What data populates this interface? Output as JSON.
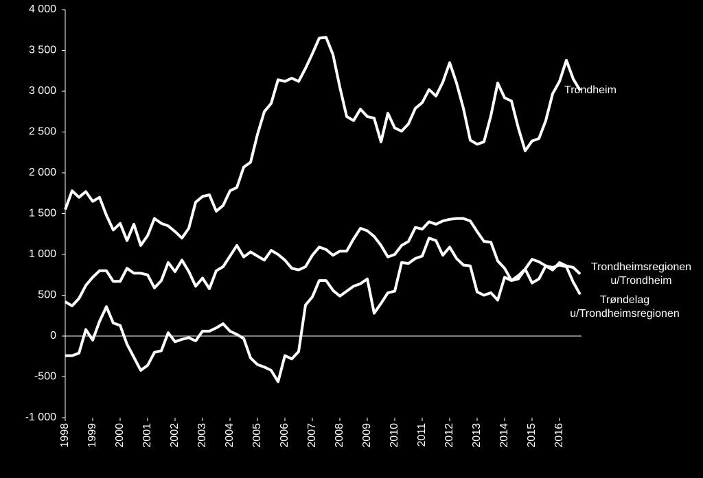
{
  "chart_data": {
    "type": "line",
    "x": [
      1998,
      1998.25,
      1998.5,
      1998.75,
      1999,
      1999.25,
      1999.5,
      1999.75,
      2000,
      2000.25,
      2000.5,
      2000.75,
      2001,
      2001.25,
      2001.5,
      2001.75,
      2002,
      2002.25,
      2002.5,
      2002.75,
      2003,
      2003.25,
      2003.5,
      2003.75,
      2004,
      2004.25,
      2004.5,
      2004.75,
      2005,
      2005.25,
      2005.5,
      2005.75,
      2006,
      2006.25,
      2006.5,
      2006.75,
      2007,
      2007.25,
      2007.5,
      2007.75,
      2008,
      2008.25,
      2008.5,
      2008.75,
      2009,
      2009.25,
      2009.5,
      2009.75,
      2010,
      2010.25,
      2010.5,
      2010.75,
      2011,
      2011.25,
      2011.5,
      2011.75,
      2012,
      2012.25,
      2012.5,
      2012.75,
      2013,
      2013.25,
      2013.5,
      2013.75,
      2014,
      2014.25,
      2014.5,
      2014.75,
      2015,
      2015.25,
      2015.5,
      2015.75,
      2016,
      2016.25,
      2016.5,
      2016.75
    ],
    "series": [
      {
        "name": "Trondheim",
        "color": "#ffffff",
        "values": [
          1550,
          1780,
          1700,
          1770,
          1650,
          1700,
          1480,
          1300,
          1380,
          1170,
          1370,
          1110,
          1230,
          1440,
          1380,
          1350,
          1280,
          1200,
          1320,
          1640,
          1710,
          1730,
          1530,
          1600,
          1780,
          1820,
          2070,
          2130,
          2470,
          2750,
          2850,
          3140,
          3120,
          3160,
          3120,
          3280,
          3460,
          3650,
          3660,
          3450,
          3050,
          2690,
          2640,
          2780,
          2690,
          2670,
          2380,
          2730,
          2550,
          2510,
          2600,
          2790,
          2860,
          3020,
          2940,
          3110,
          3350,
          3100,
          2790,
          2400,
          2350,
          2380,
          2700,
          3100,
          2920,
          2880,
          2550,
          2270,
          2390,
          2420,
          2640,
          2970,
          3120,
          3380,
          3150,
          3010
        ]
      },
      {
        "name": "Trondheimsregionen u/Trondheim",
        "color": "#ffffff",
        "values": [
          420,
          370,
          460,
          620,
          720,
          800,
          800,
          670,
          670,
          830,
          770,
          770,
          750,
          590,
          680,
          900,
          790,
          930,
          790,
          610,
          710,
          580,
          800,
          850,
          980,
          1110,
          970,
          1030,
          980,
          930,
          1050,
          1000,
          930,
          830,
          810,
          850,
          990,
          1090,
          1060,
          990,
          1040,
          1040,
          1190,
          1320,
          1290,
          1220,
          1110,
          970,
          1000,
          1110,
          1160,
          1330,
          1310,
          1400,
          1370,
          1410,
          1430,
          1440,
          1440,
          1410,
          1280,
          1160,
          1150,
          920,
          830,
          680,
          740,
          820,
          940,
          910,
          860,
          810,
          900,
          860,
          840,
          760
        ]
      },
      {
        "name": "Trøndelag u/Trondheimsregionen",
        "color": "#ffffff",
        "values": [
          -240,
          -240,
          -210,
          80,
          -50,
          180,
          360,
          160,
          130,
          -100,
          -260,
          -420,
          -360,
          -200,
          -180,
          40,
          -70,
          -40,
          -20,
          -60,
          60,
          60,
          100,
          150,
          60,
          20,
          -30,
          -270,
          -350,
          -380,
          -420,
          -560,
          -240,
          -280,
          -190,
          380,
          480,
          680,
          680,
          560,
          490,
          550,
          610,
          640,
          700,
          280,
          400,
          530,
          550,
          900,
          890,
          950,
          980,
          1200,
          1170,
          990,
          1090,
          950,
          870,
          860,
          540,
          500,
          530,
          440,
          720,
          680,
          700,
          820,
          650,
          700,
          860,
          840,
          870,
          850,
          660,
          510
        ]
      }
    ],
    "xlim": [
      1998,
      2016.75
    ],
    "xticks": [
      1998,
      1999,
      2000,
      2001,
      2002,
      2003,
      2004,
      2005,
      2006,
      2007,
      2008,
      2009,
      2010,
      2011,
      2012,
      2013,
      2014,
      2015,
      2016
    ],
    "ylim": [
      -1000,
      4000
    ],
    "yticks": [
      {
        "value": -1000,
        "label": "-1 000"
      },
      {
        "value": -500,
        "label": "-500"
      },
      0,
      500,
      {
        "value": 1000,
        "label": "1 000"
      },
      {
        "value": 1500,
        "label": "1 500"
      },
      {
        "value": 2000,
        "label": "2 000"
      },
      {
        "value": 2500,
        "label": "2 500"
      },
      {
        "value": 3000,
        "label": "3 000"
      },
      {
        "value": 3500,
        "label": "3 500"
      },
      {
        "value": 4000,
        "label": "4 000"
      }
    ]
  }
}
